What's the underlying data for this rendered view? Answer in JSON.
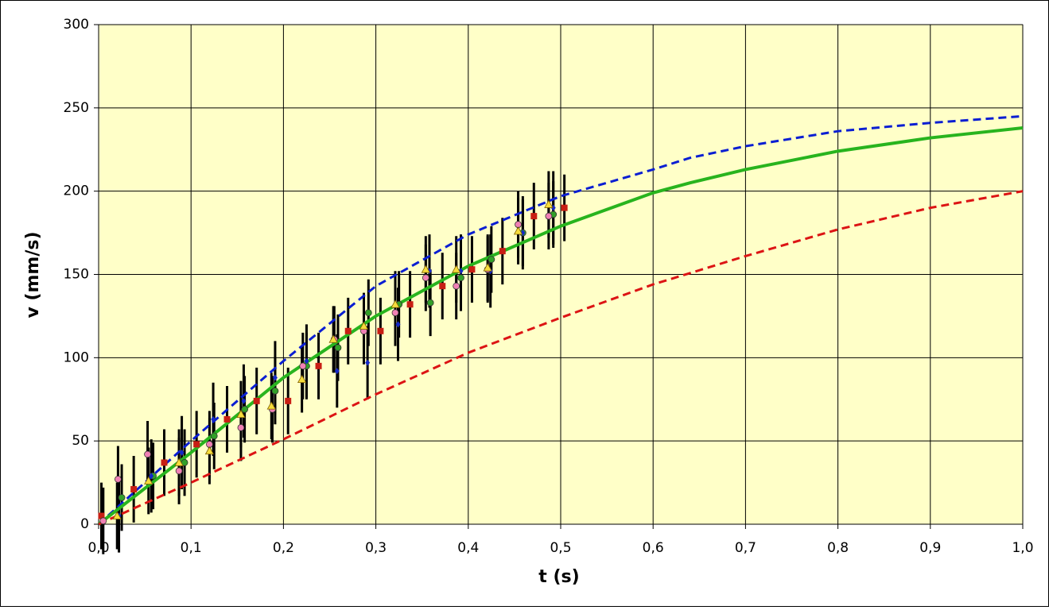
{
  "chart_data": {
    "type": "scatter",
    "xlabel": "t  (s)",
    "ylabel": "v  (mm/s)",
    "xlim": [
      0,
      1.0
    ],
    "ylim": [
      0,
      300
    ],
    "xticks": [
      {
        "value": 0,
        "label": "0,0"
      },
      {
        "value": 0.1,
        "label": "0,1"
      },
      {
        "value": 0.2,
        "label": "0,2"
      },
      {
        "value": 0.3,
        "label": "0,3"
      },
      {
        "value": 0.4,
        "label": "0,4"
      },
      {
        "value": 0.5,
        "label": "0,5"
      },
      {
        "value": 0.6,
        "label": "0,6"
      },
      {
        "value": 0.7,
        "label": "0,7"
      },
      {
        "value": 0.8,
        "label": "0,8"
      },
      {
        "value": 0.9,
        "label": "0,9"
      },
      {
        "value": 1.0,
        "label": "1,0"
      }
    ],
    "yticks": [
      0,
      50,
      100,
      150,
      200,
      250,
      300
    ],
    "grid": true,
    "background": "#ffffc8",
    "series": [
      {
        "style": "dashed",
        "color": "#0a1ed2",
        "x": [
          0,
          0.1,
          0.2,
          0.3,
          0.4,
          0.5,
          0.6,
          0.64,
          0.7,
          0.8,
          0.9,
          1.0
        ],
        "values": [
          0,
          50,
          98,
          143,
          174,
          197,
          213,
          220,
          227,
          236,
          241,
          245
        ]
      },
      {
        "style": "solid",
        "color": "#28b41e",
        "x": [
          0,
          0.1,
          0.2,
          0.3,
          0.4,
          0.5,
          0.6,
          0.64,
          0.7,
          0.8,
          0.9,
          1.0
        ],
        "values": [
          0,
          43,
          88,
          125,
          155,
          179,
          199,
          205,
          213,
          224,
          232,
          238
        ]
      },
      {
        "style": "dashed",
        "color": "#dc1414",
        "x": [
          0,
          0.1,
          0.2,
          0.3,
          0.4,
          0.5,
          0.6,
          0.7,
          0.8,
          0.9,
          1.0
        ],
        "values": [
          0,
          25,
          51,
          78,
          103,
          124,
          144,
          161,
          177,
          190,
          200
        ]
      },
      {
        "style": "marker",
        "marker": "square",
        "color": "#c81e14",
        "error": 20,
        "x": [
          0.003,
          0.038,
          0.071,
          0.106,
          0.139,
          0.171,
          0.205,
          0.238,
          0.27,
          0.305,
          0.337,
          0.372,
          0.404,
          0.437,
          0.471,
          0.504
        ],
        "values": [
          5,
          21,
          37,
          48,
          63,
          74,
          74,
          95,
          116,
          116,
          132,
          143,
          153,
          164,
          185,
          190
        ]
      },
      {
        "style": "marker",
        "marker": "circle",
        "color": "#32a028",
        "error": 20,
        "x": [
          0.025,
          0.059,
          0.093,
          0.125,
          0.158,
          0.191,
          0.225,
          0.259,
          0.292,
          0.325,
          0.359,
          0.392,
          0.425,
          0.459,
          0.492
        ],
        "values": [
          16,
          29,
          37,
          53,
          69,
          80,
          95,
          106,
          127,
          132,
          133,
          148,
          159,
          175,
          186
        ]
      },
      {
        "style": "marker",
        "marker": "diamond",
        "color": "#1428c8",
        "error": 22,
        "x": [
          0.022,
          0.057,
          0.09,
          0.124,
          0.157,
          0.191,
          0.225,
          0.258,
          0.291,
          0.324,
          0.358,
          0.392,
          0.424,
          0.459,
          0.492
        ],
        "values": [
          5,
          29,
          43,
          63,
          74,
          88,
          98,
          92,
          97,
          120,
          152,
          152,
          152,
          175,
          190
        ]
      },
      {
        "style": "marker",
        "marker": "circle",
        "color": "#f080b4",
        "error": 20,
        "x": [
          0.005,
          0.021,
          0.053,
          0.087,
          0.12,
          0.154,
          0.188,
          0.221,
          0.255,
          0.287,
          0.321,
          0.354,
          0.387,
          0.421,
          0.454,
          0.487
        ],
        "values": [
          2,
          27,
          42,
          32,
          48,
          58,
          69,
          95,
          111,
          116,
          127,
          148,
          143,
          153,
          180,
          185
        ]
      },
      {
        "style": "marker",
        "marker": "triangle",
        "color": "#f5dc3c",
        "error": 20,
        "x": [
          0.02,
          0.054,
          0.087,
          0.12,
          0.154,
          0.187,
          0.22,
          0.254,
          0.287,
          0.321,
          0.354,
          0.387,
          0.421,
          0.454,
          0.487
        ],
        "values": [
          5,
          26,
          37,
          44,
          66,
          71,
          87,
          111,
          119,
          132,
          153,
          153,
          154,
          176,
          192
        ]
      }
    ]
  }
}
